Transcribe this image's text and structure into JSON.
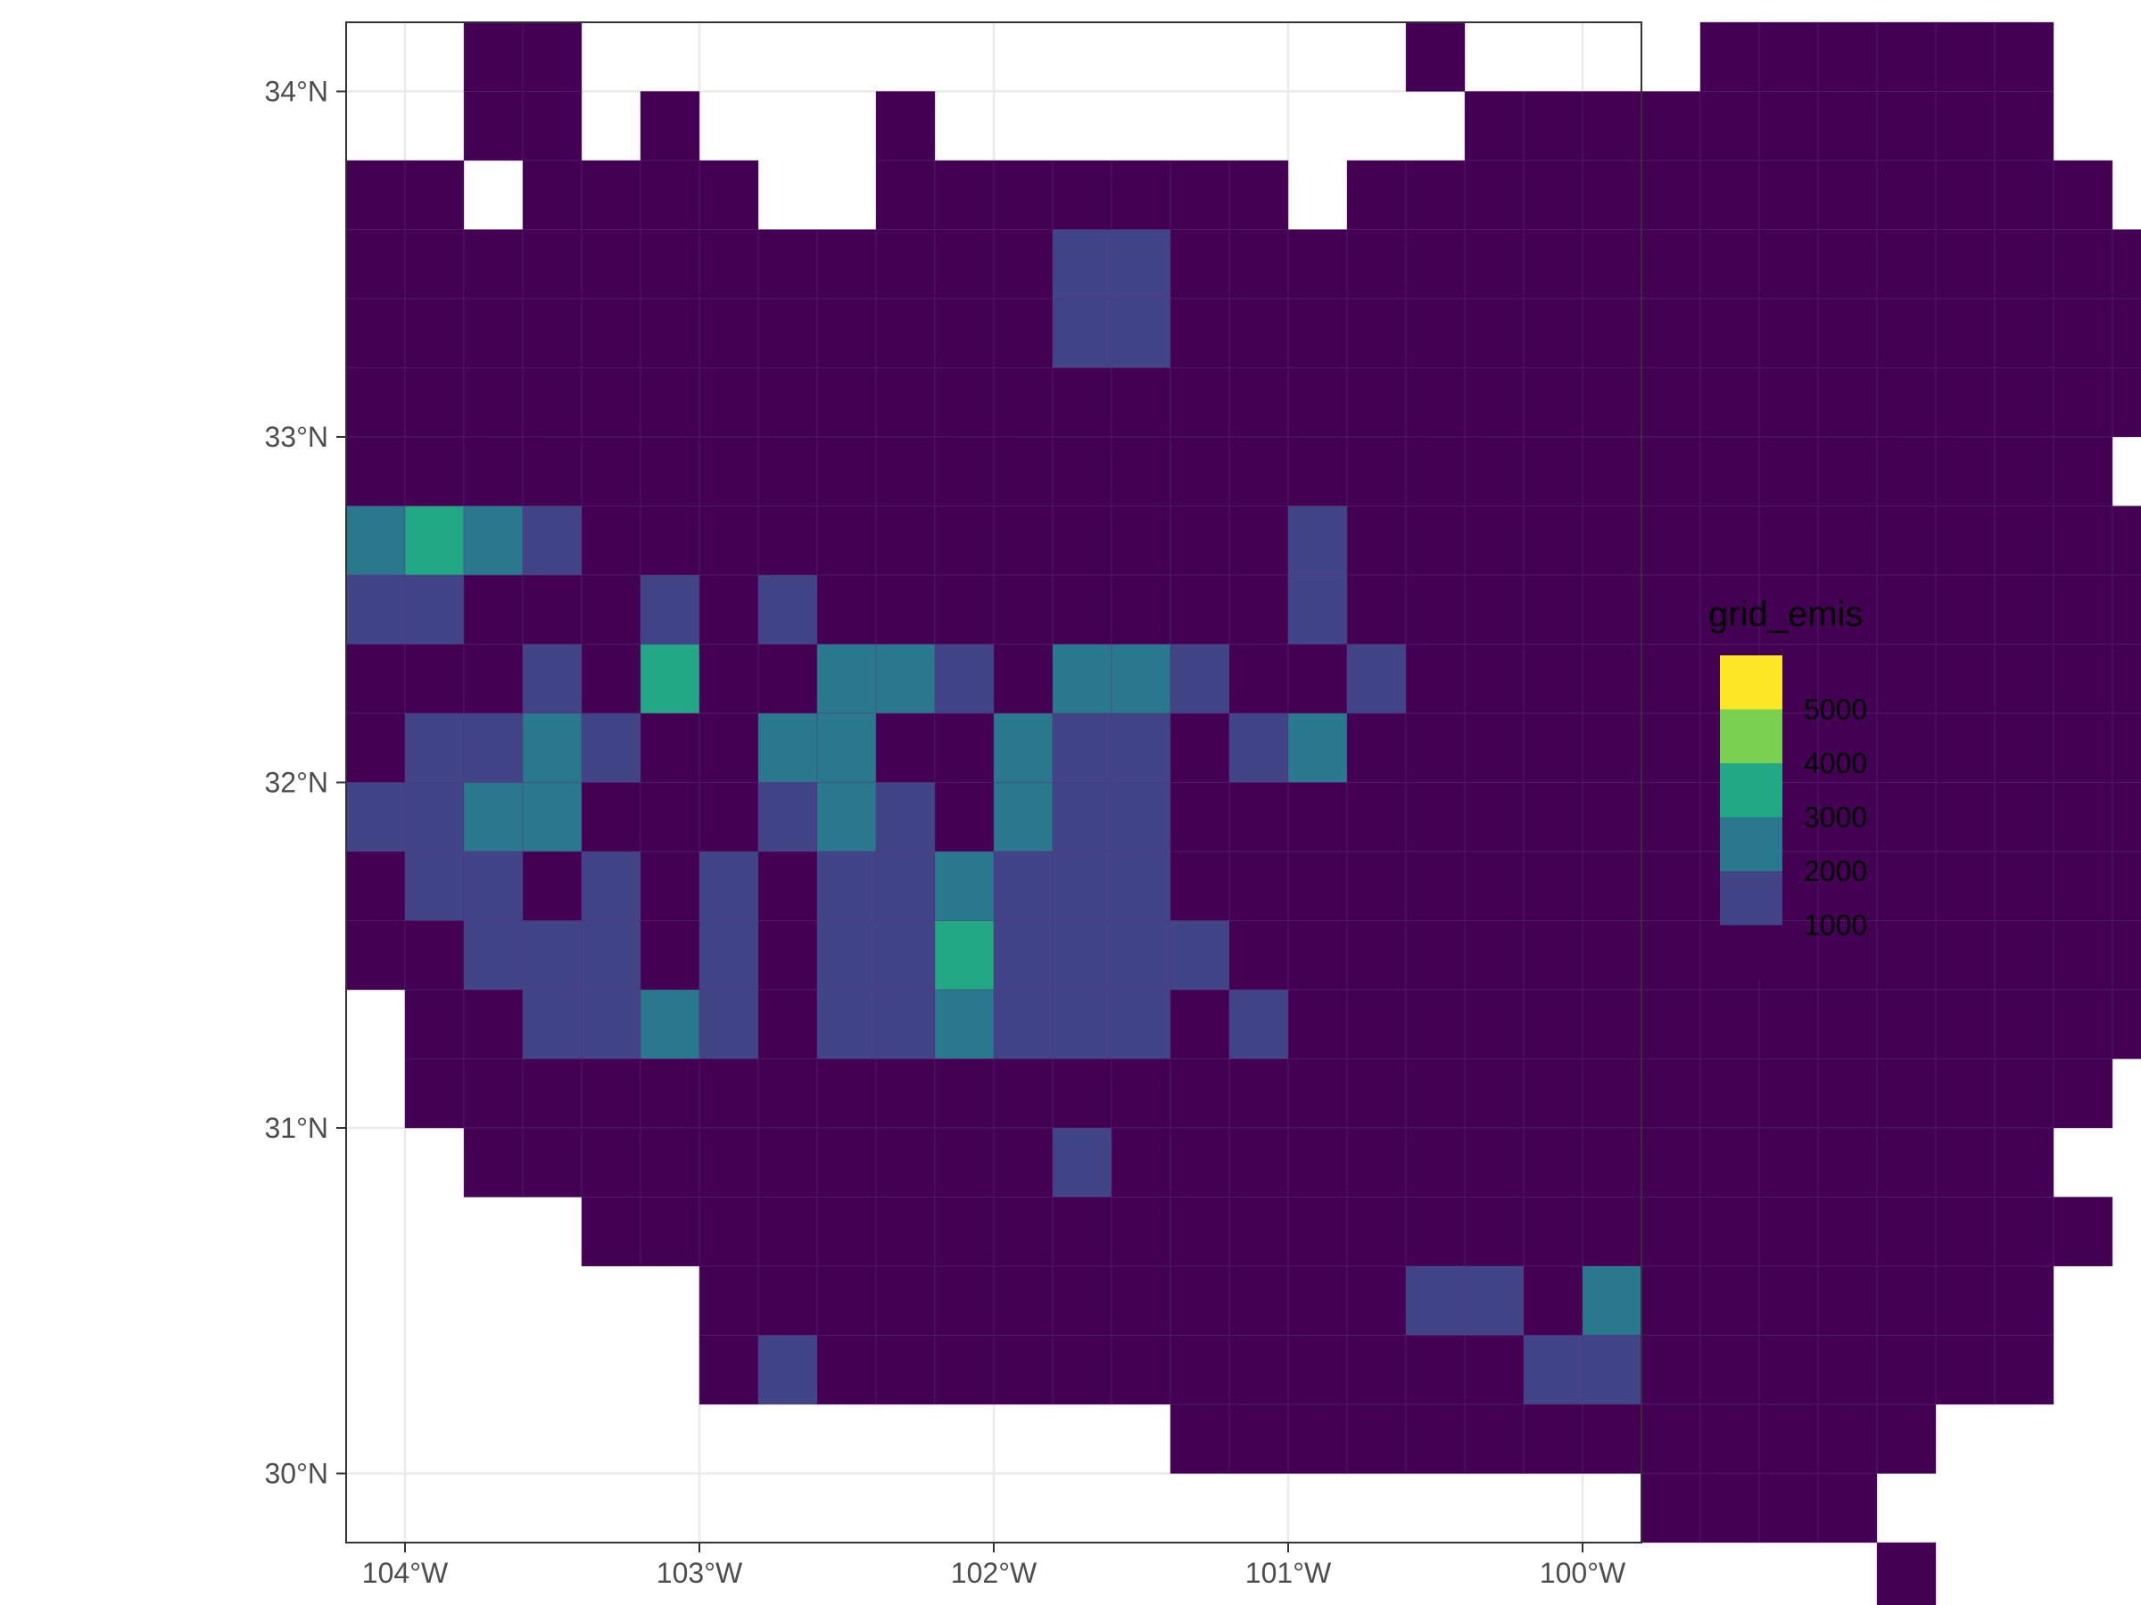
{
  "chart_data": {
    "type": "heatmap",
    "xlim": [
      -104.2,
      -99.8
    ],
    "ylim": [
      29.8,
      34.2
    ],
    "grid": true,
    "legend_placement": "right",
    "cell_size_deg": 0.2,
    "x_ticks": [
      {
        "value": -104,
        "label": "104°W"
      },
      {
        "value": -103,
        "label": "103°W"
      },
      {
        "value": -102,
        "label": "102°W"
      },
      {
        "value": -101,
        "label": "101°W"
      },
      {
        "value": -100,
        "label": "100°W"
      }
    ],
    "y_ticks": [
      {
        "value": 30,
        "label": "30°N"
      },
      {
        "value": 31,
        "label": "31°N"
      },
      {
        "value": 32,
        "label": "32°N"
      },
      {
        "value": 33,
        "label": "33°N"
      },
      {
        "value": 34,
        "label": "34°N"
      }
    ],
    "legend": {
      "title": "grid_emis",
      "bins": [
        {
          "label": "",
          "color": "#FDE725"
        },
        {
          "label": "5000",
          "color": "#7AD151"
        },
        {
          "label": "4000",
          "color": "#22A884"
        },
        {
          "label": "3000",
          "color": "#2A788E"
        },
        {
          "label": "2000",
          "color": "#414487"
        },
        {
          "label": "1000",
          "color": "#440154"
        }
      ]
    },
    "color_classes": {
      "1": {
        "color": "#440154",
        "range": "< 1000"
      },
      "2": {
        "color": "#414487",
        "range": "1000-2000"
      },
      "3": {
        "color": "#2A788E",
        "range": "2000-3000"
      },
      "4": {
        "color": "#22A884",
        "range": "3000-4000"
      },
      "5": {
        "color": "#7AD151",
        "range": "4000-5000"
      },
      "6": {
        "color": "#FDE725",
        "range": "> 5000"
      }
    },
    "grid_origin": {
      "lon": -104.2,
      "lat_top": 34.2
    },
    "grid_rows": [
      "..11..............1....111111",
      "..11.1...1.........1111111111",
      "11.1111..1111111.1111111111111",
      "1111111111112211111111111111111",
      "1111111111112211111111111111111",
      "11111111111111111111111111111111",
      "111111111111111111111111111111",
      "34321111111111112111111111111111",
      "22111212111111112111111111111111",
      "11121411332133211211111111111111",
      "12232113311322123111111111111111",
      "22331112321322111111111111111111",
      "12212121223222111111111111111111",
      "11222121224222211111111111111111",
      ".112232122322212111111111111111",
      ".11111111111111111111111111111",
      "..111111111121111111111111111",
      "....11111111111111111111111111",
      "......11111111111122131111111",
      "......12111111111111221111111",
      "..............1111111111111",
      "......................1111",
      "..........................1"
    ]
  }
}
